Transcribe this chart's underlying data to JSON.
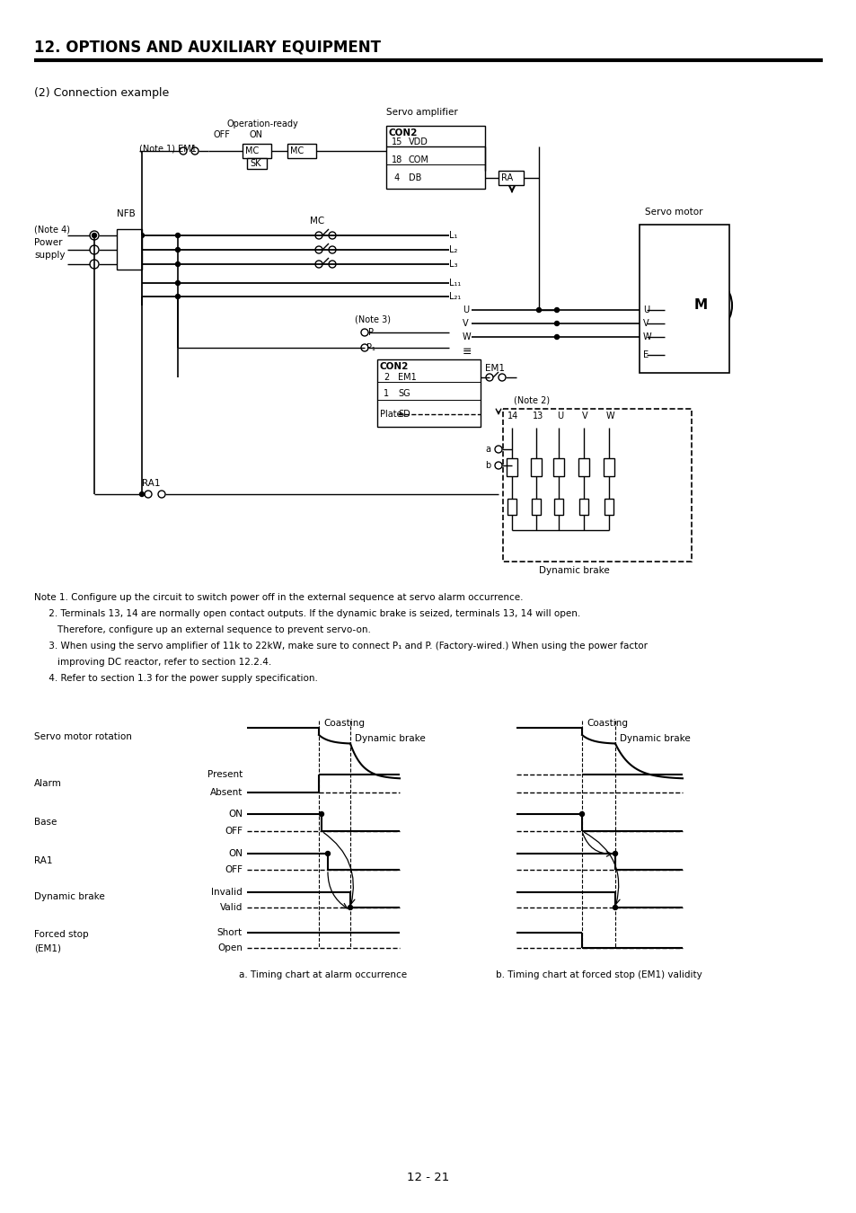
{
  "title": "12. OPTIONS AND AUXILIARY EQUIPMENT",
  "subtitle": "(2) Connection example",
  "page_number": "12 - 21",
  "notes": [
    "Note 1. Configure up the circuit to switch power off in the external sequence at servo alarm occurrence.",
    "     2. Terminals 13, 14 are normally open contact outputs. If the dynamic brake is seized, terminals 13, 14 will open.",
    "        Therefore, configure up an external sequence to prevent servo-on.",
    "     3. When using the servo amplifier of 11k to 22kW, make sure to connect P₁ and P. (Factory-wired.) When using the power factor",
    "        improving DC reactor, refer to section 12.2.4.",
    "     4. Refer to section 1.3 for the power supply specification."
  ],
  "chart_a_title": "a. Timing chart at alarm occurrence",
  "chart_b_title": "b. Timing chart at forced stop (EM1) validity",
  "background_color": "#ffffff"
}
